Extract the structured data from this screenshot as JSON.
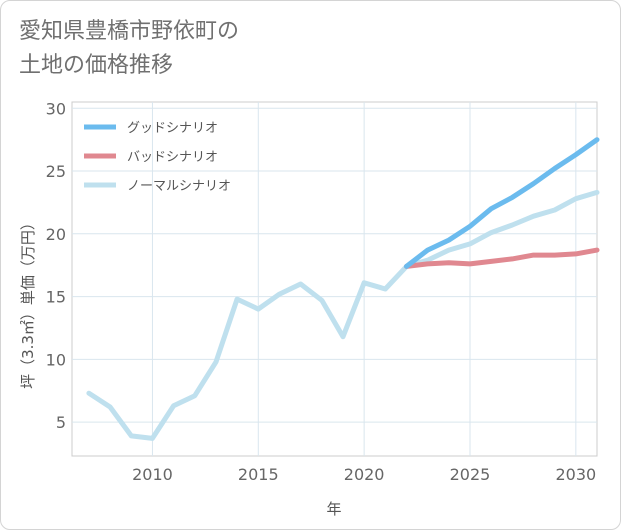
{
  "title": "愛知県豊橋市野依町の\n土地の価格推移",
  "chart_data": {
    "type": "line",
    "xlabel": "年",
    "ylabel": "坪（3.3㎡）単価（万円）",
    "xlim": [
      2006.2,
      2031
    ],
    "ylim": [
      2.3,
      30.5
    ],
    "xticks": [
      2010,
      2015,
      2020,
      2025,
      2030
    ],
    "yticks": [
      5,
      10,
      15,
      20,
      25,
      30
    ],
    "grid": true,
    "legend_position": "top-left",
    "series": [
      {
        "name": "グッドシナリオ",
        "color": "#6bbbee",
        "x": [
          2022,
          2023,
          2024,
          2025,
          2026,
          2027,
          2028,
          2029,
          2030,
          2031
        ],
        "y": [
          17.4,
          18.7,
          19.5,
          20.6,
          22.0,
          22.9,
          24.0,
          25.2,
          26.3,
          27.5
        ]
      },
      {
        "name": "バッドシナリオ",
        "color": "#e08890",
        "x": [
          2022,
          2023,
          2024,
          2025,
          2026,
          2027,
          2028,
          2029,
          2030,
          2031
        ],
        "y": [
          17.4,
          17.6,
          17.7,
          17.6,
          17.8,
          18.0,
          18.3,
          18.3,
          18.4,
          18.7
        ]
      },
      {
        "name": "ノーマルシナリオ",
        "color": "#bfe0ee",
        "x": [
          2007,
          2008,
          2009,
          2010,
          2011,
          2012,
          2013,
          2014,
          2015,
          2016,
          2017,
          2018,
          2019,
          2020,
          2021,
          2022,
          2023,
          2024,
          2025,
          2026,
          2027,
          2028,
          2029,
          2030,
          2031
        ],
        "y": [
          7.3,
          6.2,
          3.9,
          3.7,
          6.3,
          7.1,
          9.8,
          14.8,
          14.0,
          15.2,
          16.0,
          14.7,
          11.8,
          16.1,
          15.6,
          17.4,
          17.9,
          18.7,
          19.2,
          20.1,
          20.7,
          21.4,
          21.9,
          22.8,
          23.3
        ]
      }
    ]
  }
}
